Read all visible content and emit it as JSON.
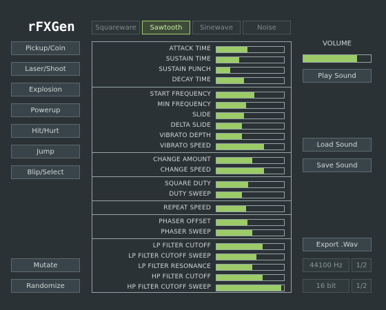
{
  "app": {
    "title": "rFXGen"
  },
  "tabs": [
    {
      "label": "Squareware",
      "active": false
    },
    {
      "label": "Sawtooth",
      "active": true
    },
    {
      "label": "Sinewave",
      "active": false
    },
    {
      "label": "Noise",
      "active": false
    }
  ],
  "presets": [
    {
      "label": "Pickup/Coin"
    },
    {
      "label": "Laser/Shoot"
    },
    {
      "label": "Explosion"
    },
    {
      "label": "Powerup"
    },
    {
      "label": "Hit/Hurt"
    },
    {
      "label": "Jump"
    },
    {
      "label": "Blip/Select"
    }
  ],
  "actions": {
    "mutate": "Mutate",
    "randomize": "Randomize"
  },
  "params": [
    [
      {
        "label": "ATTACK TIME",
        "value": 0.46
      },
      {
        "label": "SUSTAIN TIME",
        "value": 0.34
      },
      {
        "label": "SUSTAIN PUNCH",
        "value": 0.2
      },
      {
        "label": "DECAY TIME",
        "value": 0.41
      }
    ],
    [
      {
        "label": "START FREQUENCY",
        "value": 0.56
      },
      {
        "label": "MIN FREQUENCY",
        "value": 0.44
      },
      {
        "label": "SLIDE",
        "value": 0.41
      },
      {
        "label": "DELTA SLIDE",
        "value": 0.38
      },
      {
        "label": "VIBRATO DEPTH",
        "value": 0.38
      },
      {
        "label": "VIBRATO SPEED",
        "value": 0.7
      }
    ],
    [
      {
        "label": "CHANGE AMOUNT",
        "value": 0.53
      },
      {
        "label": "CHANGE SPEED",
        "value": 0.7
      }
    ],
    [
      {
        "label": "SQUARE DUTY",
        "value": 0.47
      },
      {
        "label": "DUTY SWEEP",
        "value": 0.38
      }
    ],
    [
      {
        "label": "REPEAT SPEED",
        "value": 0.44
      }
    ],
    [
      {
        "label": "PHASER OFFSET",
        "value": 0.46
      },
      {
        "label": "PHASER SWEEP",
        "value": 0.53
      }
    ],
    [
      {
        "label": "LP FILTER CUTOFF",
        "value": 0.68
      },
      {
        "label": "LP FILTER CUTOFF SWEEP",
        "value": 0.59
      },
      {
        "label": "LP FILTER RESONANCE",
        "value": 0.53
      },
      {
        "label": "HP FILTER CUTOFF",
        "value": 0.68
      },
      {
        "label": "HP FILTER CUTOFF SWEEP",
        "value": 0.96
      }
    ]
  ],
  "volume": {
    "label": "VOLUME",
    "value": 0.8
  },
  "sound": {
    "play": "Play Sound",
    "load": "Load Sound",
    "save": "Save Sound"
  },
  "export": {
    "label": "Export .Wav",
    "sample_rate": "44100 Hz",
    "sample_rate_step": "1/2",
    "bit_depth": "16 bit",
    "bit_depth_step": "1/2"
  },
  "colors": {
    "accent": "#9ccb67",
    "background": "#2b3235",
    "border": "#97a5a8"
  }
}
